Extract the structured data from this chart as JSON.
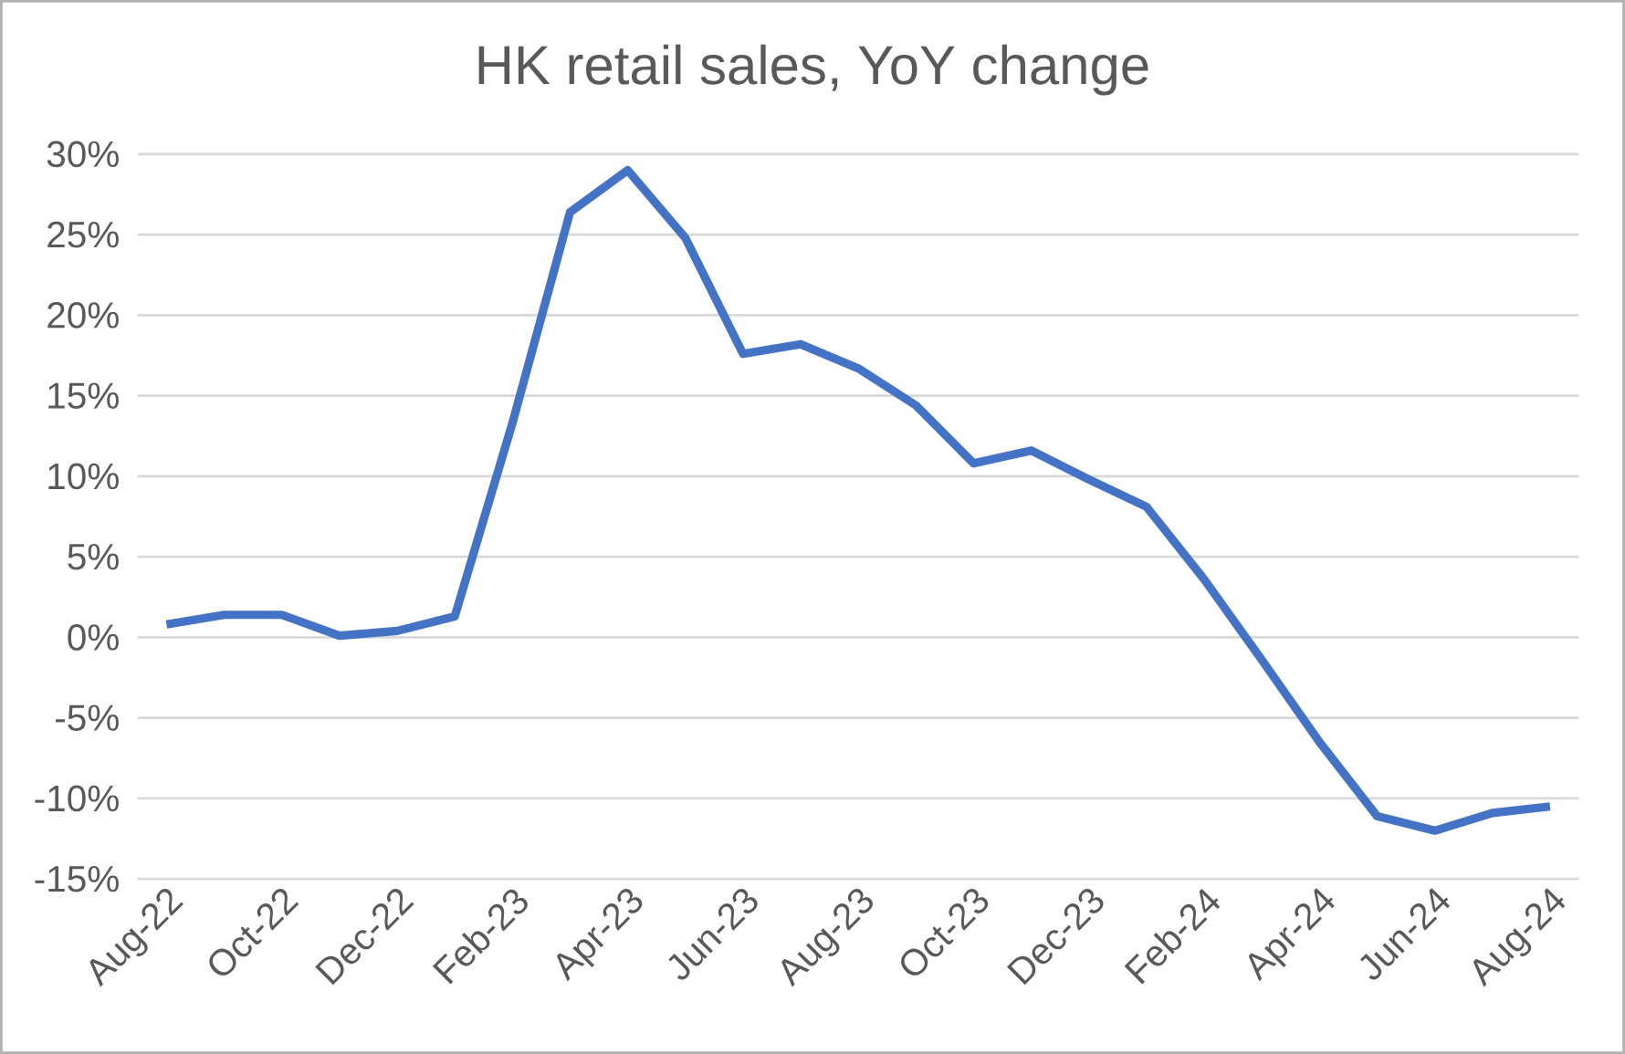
{
  "chart_data": {
    "type": "line",
    "title": "HK retail sales, YoY change",
    "categories": [
      "Aug-22",
      null,
      "Oct-22",
      null,
      "Dec-22",
      null,
      "Feb-23",
      null,
      "Apr-23",
      null,
      "Jun-23",
      null,
      "Aug-23",
      null,
      "Oct-23",
      null,
      "Dec-23",
      null,
      "Feb-24",
      null,
      "Apr-24",
      null,
      "Jun-24",
      null,
      "Aug-24"
    ],
    "series": [
      {
        "color": "#4472c4",
        "values": [
          0.8,
          1.4,
          1.4,
          0.1,
          0.4,
          1.3,
          13.3,
          26.4,
          29.0,
          24.8,
          17.6,
          18.2,
          16.7,
          14.4,
          10.8,
          11.6,
          9.8,
          8.1,
          3.6,
          -1.4,
          -6.5,
          -11.1,
          -12.0,
          -10.9,
          -10.5
        ]
      }
    ],
    "ylim": [
      -15,
      30
    ],
    "yticks": [
      {
        "value": -15,
        "label": "-15%"
      },
      {
        "value": -10,
        "label": "-10%"
      },
      {
        "value": -5,
        "label": "-5%"
      },
      {
        "value": 0,
        "label": "0%"
      },
      {
        "value": 5,
        "label": "5%"
      },
      {
        "value": 10,
        "label": "10%"
      },
      {
        "value": 15,
        "label": "15%"
      },
      {
        "value": 20,
        "label": "20%"
      },
      {
        "value": 25,
        "label": "25%"
      },
      {
        "value": 30,
        "label": "30%"
      }
    ],
    "grid": "y",
    "marker": "none",
    "line_style": "solid"
  }
}
